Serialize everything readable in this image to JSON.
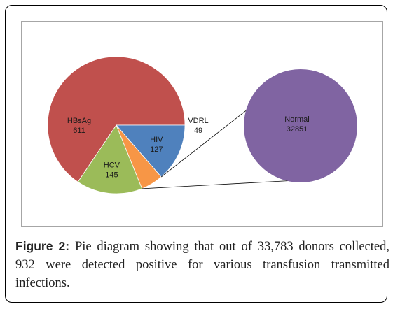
{
  "chart_data": {
    "type": "pie",
    "title": "",
    "slices": [
      {
        "label": "HBsAg",
        "value": 611,
        "color": "#c0504d"
      },
      {
        "label": "HCV",
        "value": 145,
        "color": "#9bbb59"
      },
      {
        "label": "VDRL",
        "value": 49,
        "color": "#f79646"
      },
      {
        "label": "HIV",
        "value": 127,
        "color": "#4f81bd"
      }
    ],
    "exploded": {
      "label": "Normal",
      "value": 32851,
      "color": "#8064a2"
    },
    "start_angle_deg": 0,
    "direction": "counterclockwise",
    "connector_color": "#000000"
  },
  "caption": {
    "label": "Figure 2:",
    "text": "Pie diagram showing that out of 33,783 donors collected, 932 were detected positive for various transfusion transmitted infections."
  }
}
